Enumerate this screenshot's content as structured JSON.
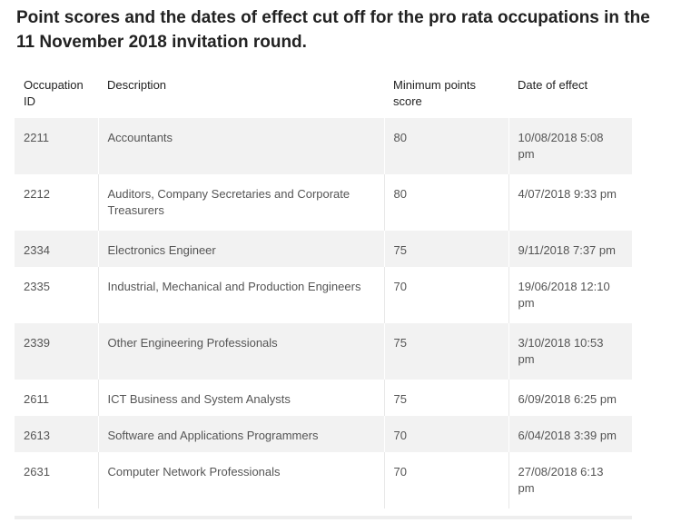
{
  "heading": "Point scores and the dates of effect cut off for the pro rata occupations in the 11 November 2018 invitation round.",
  "table": {
    "headers": [
      "Occupation ID",
      "Description",
      "Minimum points score",
      "Date of effect"
    ],
    "rows": [
      [
        "2211",
        "Accountants",
        "80",
        "10/08/2018  5:08 pm"
      ],
      [
        "2212",
        "Auditors, Company Secretaries and Corporate Treasurers",
        "80",
        "4/07/2018  9:33 pm"
      ],
      [
        "2334",
        "Electronics Engineer",
        "75",
        "9/11/2018  7:37 pm"
      ],
      [
        "2335",
        "Industrial, Mechanical and Production Engineers",
        "70",
        "19/06/2018  12:10 pm"
      ],
      [
        "2339",
        "Other Engineering Professionals",
        "75",
        "3/10/2018  10:53 pm"
      ],
      [
        "2611",
        "ICT Business and System Analysts",
        "75",
        "6/09/2018  6:25 pm"
      ],
      [
        "2613",
        "Software and Applications Programmers",
        "70",
        "6/04/2018  3:39 pm"
      ],
      [
        "2631",
        "Computer Network Professionals",
        "70",
        "27/08/2018  6:13 pm"
      ]
    ]
  }
}
